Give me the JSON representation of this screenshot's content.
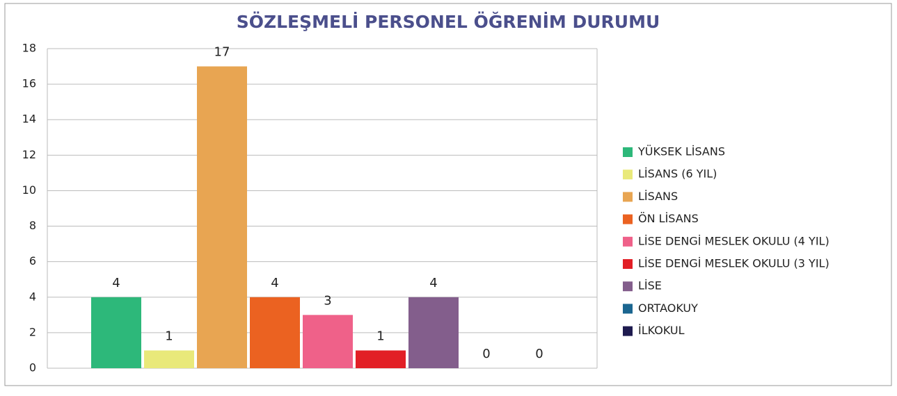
{
  "chart_data": {
    "type": "bar",
    "title": "SÖZLEŞMELİ PERSONEL ÖĞRENİM DURUMU",
    "categories": [
      null
    ],
    "series": [
      {
        "name": "YÜKSEK LİSANS",
        "color": "#2db87a",
        "values": [
          4
        ]
      },
      {
        "name": "LİSANS (6 YIL)",
        "color": "#e9e97a",
        "values": [
          1
        ]
      },
      {
        "name": "LİSANS",
        "color": "#e8a552",
        "values": [
          17
        ]
      },
      {
        "name": "ÖN LİSANS",
        "color": "#eb6221",
        "values": [
          4
        ]
      },
      {
        "name": "LİSE DENGİ MESLEK OKULU (4 YIL)",
        "color": "#ef6189",
        "values": [
          3
        ]
      },
      {
        "name": "LİSE DENGİ MESLEK OKULU (3 YIL)",
        "color": "#e21f26",
        "values": [
          1
        ]
      },
      {
        "name": "LİSE",
        "color": "#835e8c",
        "values": [
          4
        ]
      },
      {
        "name": "ORTAOKUY",
        "color": "#1b6690",
        "values": [
          0
        ]
      },
      {
        "name": "İLKOKUL",
        "color": "#1e1b4f",
        "values": [
          0
        ]
      }
    ],
    "ylim": [
      0,
      18
    ],
    "yticks": [
      0,
      2,
      4,
      6,
      8,
      10,
      12,
      14,
      16,
      18
    ],
    "grid": true,
    "legend": "right"
  }
}
